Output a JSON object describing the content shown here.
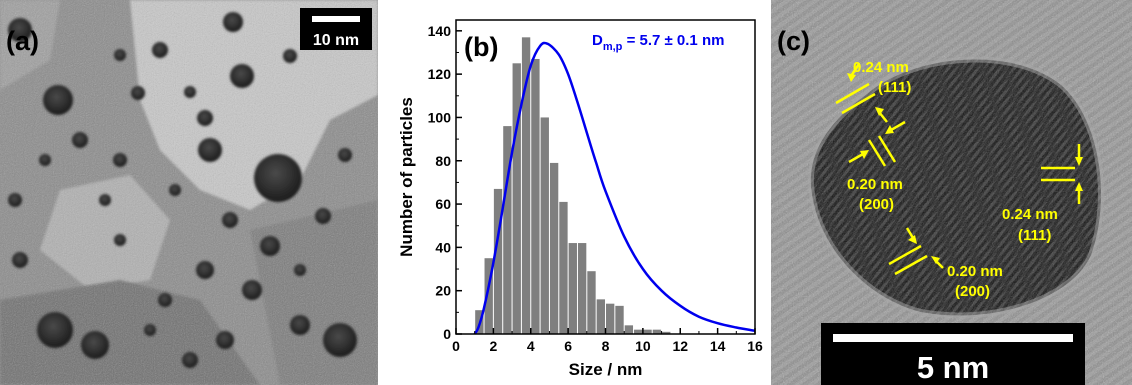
{
  "panel_a": {
    "label": "(a)",
    "scalebar_text": "10 nm"
  },
  "panel_b": {
    "label": "(b)"
  },
  "panel_c": {
    "label": "(c)",
    "scalebar_text": "5 nm",
    "annotations": [
      {
        "spacing": "0.24 nm",
        "plane": "(111)"
      },
      {
        "spacing": "0.20 nm",
        "plane": "(200)"
      },
      {
        "spacing": "0.24 nm",
        "plane": "(111)"
      },
      {
        "spacing": "0.20 nm",
        "plane": "(200)"
      }
    ],
    "annotation_color": "#ffff00"
  },
  "chart_data": {
    "type": "bar",
    "xlabel": "Size / nm",
    "ylabel": "Number of particles",
    "xlim": [
      0,
      16
    ],
    "ylim": [
      0,
      145
    ],
    "xticks": [
      "0",
      "2",
      "4",
      "6",
      "8",
      "10",
      "12",
      "14",
      "16"
    ],
    "yticks": [
      "0",
      "20",
      "40",
      "60",
      "80",
      "100",
      "120",
      "140"
    ],
    "bin_width": 0.5,
    "bin_starts": [
      1.0,
      1.5,
      2.0,
      2.5,
      3.0,
      3.5,
      4.0,
      4.5,
      5.0,
      5.5,
      6.0,
      6.5,
      7.0,
      7.5,
      8.0,
      8.5,
      9.0,
      9.5,
      10.0,
      10.5,
      11.0,
      11.5,
      12.0,
      12.5,
      13.0,
      13.5,
      14.0,
      14.5,
      15.0,
      15.5
    ],
    "values": [
      11,
      35,
      67,
      96,
      125,
      137,
      127,
      100,
      79,
      61,
      42,
      42,
      29,
      16,
      14,
      13,
      4,
      2,
      2,
      2,
      1,
      0,
      0,
      0,
      0,
      0,
      0,
      0,
      0,
      0
    ],
    "fit": {
      "label": "D",
      "subscript": "m,p",
      "equation": " = 5.7 ± 0.1 nm",
      "color": "#0000ee",
      "mode": 4.9,
      "peak": 134,
      "x": [
        1.0,
        1.2,
        1.5,
        2.0,
        2.5,
        3.0,
        3.5,
        4.0,
        4.5,
        4.9,
        5.5,
        6.0,
        6.5,
        7.0,
        7.5,
        8.0,
        9.0,
        10.0,
        11.0,
        12.0,
        13.0,
        14.0,
        15.0,
        16.0
      ],
      "y": [
        0,
        3,
        12,
        33,
        58,
        84,
        106,
        124,
        133,
        134,
        129,
        120,
        107,
        93,
        79,
        66,
        45,
        30,
        20,
        13,
        8,
        5,
        3,
        1.5
      ]
    },
    "bar_color": "#7f7f7f"
  }
}
